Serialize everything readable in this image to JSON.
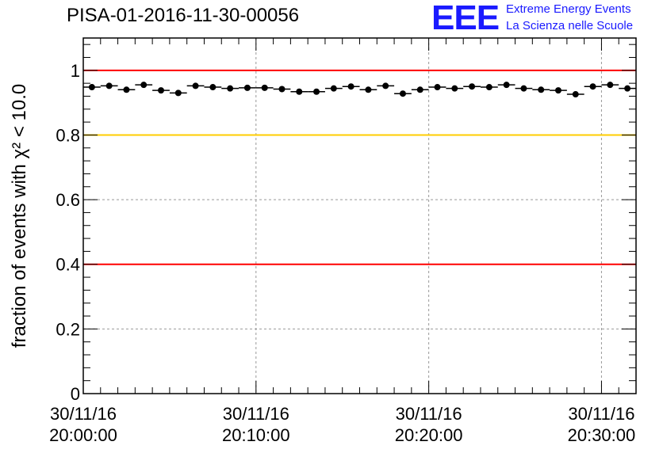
{
  "header": {
    "title": "PISA-01-2016-11-30-00056"
  },
  "logo": {
    "mark": "EEE",
    "line1": "Extreme Energy Events",
    "line2": "La Scienza nelle Scuole",
    "color": "#1a1aff"
  },
  "chart_data": {
    "type": "scatter",
    "title": "PISA-01-2016-11-30-00056",
    "ylabel": "fraction of events with χ² < 10.0",
    "xlabel": "",
    "ylim": [
      0,
      1.1
    ],
    "yticks": [
      0,
      0.2,
      0.4,
      0.6,
      0.8,
      1
    ],
    "ytick_labels": [
      "0",
      "0.2",
      "0.4",
      "0.6",
      "0.8",
      "1"
    ],
    "xlim_minutes": [
      0,
      32
    ],
    "xticks": [
      {
        "minute": 0,
        "date": "30/11/16",
        "time": "20:00:00"
      },
      {
        "minute": 10,
        "date": "30/11/16",
        "time": "20:10:00"
      },
      {
        "minute": 20,
        "date": "30/11/16",
        "time": "20:20:00"
      },
      {
        "minute": 30,
        "date": "30/11/16",
        "time": "20:30:00"
      }
    ],
    "grid": true,
    "reference_lines": [
      {
        "y": 1.0,
        "color": "#ff0000"
      },
      {
        "y": 0.8,
        "color": "#ffcc00"
      },
      {
        "y": 0.4,
        "color": "#ff0000"
      }
    ],
    "bin_width_minutes": 1,
    "x": [
      0.5,
      1.5,
      2.5,
      3.5,
      4.5,
      5.5,
      6.5,
      7.5,
      8.5,
      9.5,
      10.5,
      11.5,
      12.5,
      13.5,
      14.5,
      15.5,
      16.5,
      17.5,
      18.5,
      19.5,
      20.5,
      21.5,
      22.5,
      23.5,
      24.5,
      25.5,
      26.5,
      27.5,
      28.5,
      29.5,
      30.5,
      31.5
    ],
    "values": [
      0.948,
      0.952,
      0.94,
      0.955,
      0.938,
      0.93,
      0.952,
      0.948,
      0.944,
      0.946,
      0.946,
      0.942,
      0.934,
      0.934,
      0.944,
      0.95,
      0.94,
      0.952,
      0.928,
      0.94,
      0.948,
      0.944,
      0.95,
      0.948,
      0.955,
      0.944,
      0.94,
      0.938,
      0.926,
      0.95,
      0.955,
      0.944
    ],
    "marker_color": "#000000"
  }
}
